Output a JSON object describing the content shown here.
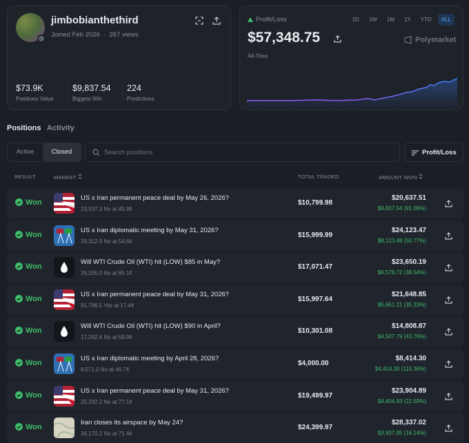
{
  "profile": {
    "username": "jimbobianthethird",
    "joined": "Joined Feb 2026",
    "views": "267 views",
    "stats": [
      {
        "value": "$73.9K",
        "label": "Positions Value"
      },
      {
        "value": "$9,837.54",
        "label": "Biggest Win"
      },
      {
        "value": "224",
        "label": "Predictions"
      }
    ]
  },
  "pnl": {
    "label": "Profit/Loss",
    "ranges": [
      "1D",
      "1W",
      "1M",
      "1Y",
      "YTD",
      "ALL"
    ],
    "amount": "$57,348.75",
    "brand": "Polymarket",
    "period": "All-Time"
  },
  "tabs": [
    "Positions",
    "Activity"
  ],
  "filters": [
    "Active",
    "Closed"
  ],
  "search": "Search positions",
  "sort": "Profit/Loss",
  "table": {
    "headers": [
      "RESULT",
      "MARKET",
      "TOTAL TRADED",
      "AMOUNT WON"
    ],
    "rows": [
      {
        "result": "Won",
        "icon": "flag",
        "title": "US x Iran permanent peace deal by May 26, 2026?",
        "detail": "23,537.3 No at 45.9¢",
        "traded": "$10,799.98",
        "won": "$20,637.51",
        "gain": "$9,837.54 (91.09%)"
      },
      {
        "result": "Won",
        "icon": "meet",
        "title": "US x Iran diplomatic meeting by May 31, 2026?",
        "detail": "29,312.9 No at 54.6¢",
        "traded": "$15,999.99",
        "won": "$24,123.47",
        "gain": "$8,123.48 (50.77%)"
      },
      {
        "result": "Won",
        "icon": "oil",
        "title": "Will WTI Crude Oil (WTI) hit (LOW) $85 in May?",
        "detail": "26,205.0 No at 65.1¢",
        "traded": "$17,071.47",
        "won": "$23,650.19",
        "gain": "$6,578.72 (38.54%)"
      },
      {
        "result": "Won",
        "icon": "flag",
        "title": "US x Iran permanent peace deal by May 31, 2026?",
        "detail": "91,796.5 Yes at 17.4¢",
        "traded": "$15,997.64",
        "won": "$21,648.85",
        "gain": "$5,651.21 (35.33%)"
      },
      {
        "result": "Won",
        "icon": "oil",
        "title": "Will WTI Crude Oil (WTI) hit (LOW) $90 in April?",
        "detail": "17,202.8 No at 59.9¢",
        "traded": "$10,301.08",
        "won": "$14,808.87",
        "gain": "$4,507.79 (43.76%)"
      },
      {
        "result": "Won",
        "icon": "meet",
        "title": "US x Iran diplomatic meeting by April 28, 2026?",
        "detail": "8,571.0 No at 46.7¢",
        "traded": "$4,000.00",
        "won": "$8,414.30",
        "gain": "$4,414.30 (110.36%)"
      },
      {
        "result": "Won",
        "icon": "flag",
        "title": "US x Iran permanent peace deal by May 31, 2026?",
        "detail": "25,292.2 No at 77.1¢",
        "traded": "$19,499.97",
        "won": "$23,904.89",
        "gain": "$4,404.93 (22.59%)"
      },
      {
        "result": "Won",
        "icon": "map",
        "title": "Iran closes its airspace by May 24?",
        "detail": "34,170.2 No at 71.4¢",
        "traded": "$24,399.97",
        "won": "$28,337.02",
        "gain": "$3,937.05 (16.14%)"
      }
    ]
  }
}
